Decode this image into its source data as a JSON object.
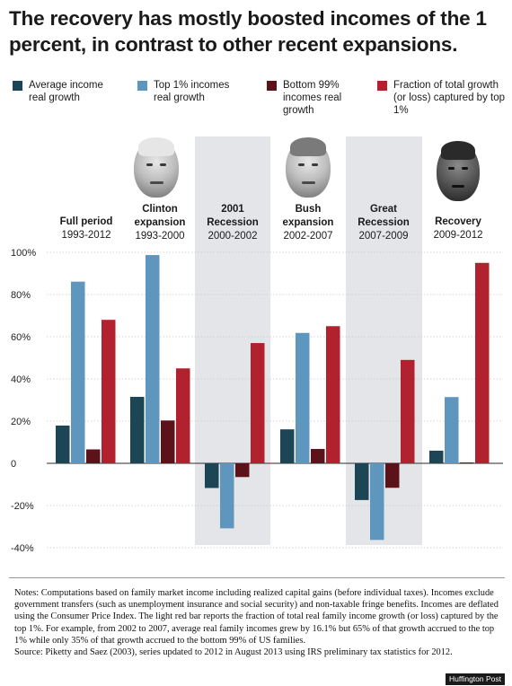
{
  "title": "The recovery has mostly boosted incomes of the 1 percent, in contrast to other recent expansions.",
  "legend": [
    {
      "label": "Average income real growth",
      "color": "#1c4556"
    },
    {
      "label": "Top 1% incomes real growth",
      "color": "#5f96bd"
    },
    {
      "label": "Bottom 99% incomes real growth",
      "color": "#5c1219"
    },
    {
      "label": "Fraction of total growth (or loss) captured by top 1%",
      "color": "#b1222e"
    }
  ],
  "periods": [
    {
      "name": "Full period",
      "years": "1993-2012"
    },
    {
      "name": "Clinton expansion",
      "years": "1993-2000"
    },
    {
      "name": "2001 Recession",
      "years": "2000-2002"
    },
    {
      "name": "Bush expansion",
      "years": "2002-2007"
    },
    {
      "name": "Great Recession",
      "years": "2007-2009"
    },
    {
      "name": "Recovery",
      "years": "2009-2012"
    }
  ],
  "chart_data": {
    "type": "bar",
    "categories": [
      "Full period 1993-2012",
      "Clinton expansion 1993-2000",
      "2001 Recession 2000-2002",
      "Bush expansion 2002-2007",
      "Great Recession 2007-2009",
      "Recovery 2009-2012"
    ],
    "series": [
      {
        "name": "Average income real growth",
        "values": [
          17.9,
          31.5,
          -11.7,
          16.1,
          -17.4,
          6.0
        ]
      },
      {
        "name": "Top 1% incomes real growth",
        "values": [
          86.1,
          98.7,
          -30.8,
          61.8,
          -36.3,
          31.4
        ]
      },
      {
        "name": "Bottom 99% incomes real growth",
        "values": [
          6.6,
          20.3,
          -6.5,
          6.8,
          -11.6,
          0.4
        ]
      },
      {
        "name": "Fraction of total growth (or loss) captured by top 1%",
        "values": [
          68,
          45,
          57,
          65,
          49,
          95
        ]
      }
    ],
    "yticks": [
      "100%",
      "80%",
      "60%",
      "40%",
      "20%",
      "0",
      "-20%",
      "-40%"
    ],
    "ylim": [
      -40,
      100
    ],
    "shaded_periods": [
      "2001 Recession 2000-2002",
      "Great Recession 2007-2009"
    ],
    "xlabel": "",
    "ylabel": ""
  },
  "notes": "Notes: Computations based on family market income including realized capital gains (before individual taxes). Incomes exclude government transfers (such as unemployment insurance and social security) and non-taxable fringe benefits. Incomes are deflated using the Consumer Price Index. The light red bar reports the fraction of total real family income growth (or loss) captured by the top 1%. For example, from 2002 to 2007, average real family incomes grew by 16.1% but 65% of that growth accrued to the top 1% while only 35% of that growth accrued to the bottom 99% of US families.",
  "source": "Source: Piketty and Saez (2003), series updated to 2012 in August 2013 using IRS preliminary tax statistics for 2012.",
  "credit": "Huffington Post"
}
